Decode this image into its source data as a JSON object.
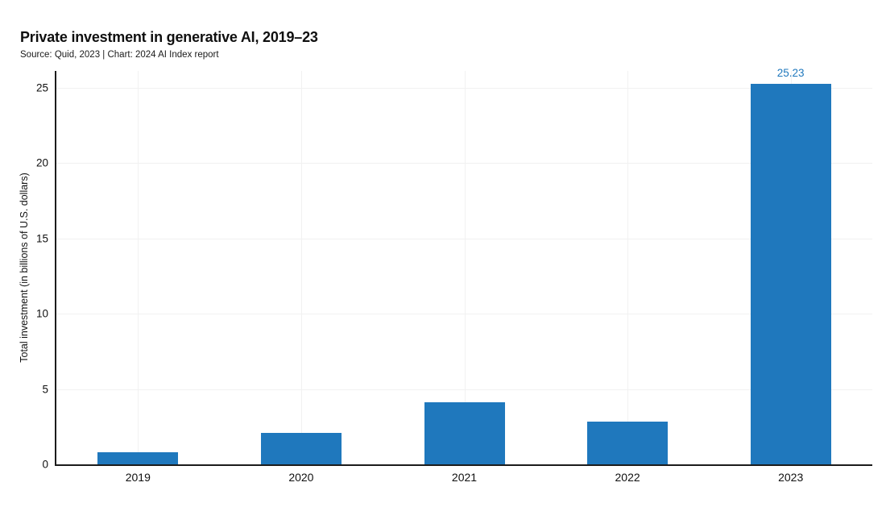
{
  "header": {
    "title": "Private investment in generative AI, 2019–23",
    "subtitle": "Source: Quid, 2023 | Chart: 2024 AI Index report"
  },
  "chart_data": {
    "type": "bar",
    "title": "Private investment in generative AI, 2019–23",
    "subtitle": "Source: Quid, 2023 | Chart: 2024 AI Index report",
    "categories": [
      "2019",
      "2020",
      "2021",
      "2022",
      "2023"
    ],
    "values": [
      0.8,
      2.1,
      4.1,
      2.85,
      25.23
    ],
    "value_labels": [
      null,
      null,
      null,
      null,
      "25.23"
    ],
    "xlabel": "",
    "ylabel": "Total investment (in billions of U.S. dollars)",
    "yticks": [
      0,
      5,
      10,
      15,
      20,
      25
    ],
    "ylim": [
      0,
      26.1
    ],
    "grid": true,
    "legend": "none",
    "colors": {
      "bar": "#1f78bd",
      "value_label": "#1f78bd",
      "axis": "#1c1c1c",
      "gridline": "#f1f1f1",
      "text": "#101010"
    }
  }
}
